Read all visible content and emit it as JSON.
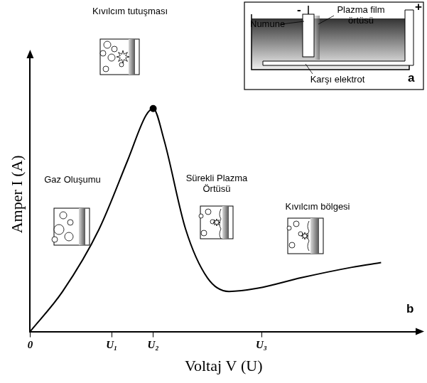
{
  "chart_data": {
    "type": "line",
    "x_label": "Voltaj V (U)",
    "y_label": "Amper I (A)",
    "x": [
      0,
      8.4,
      17.8,
      25.2,
      29.9,
      31.8,
      34.6,
      40.2,
      45.8,
      51.4,
      58.9,
      70.1,
      83.2,
      90.7
    ],
    "values": [
      0,
      14.6,
      37.2,
      62.3,
      78.6,
      81.2,
      69.8,
      37.2,
      19.6,
      14.6,
      15.8,
      19.6,
      23.4,
      25.1
    ],
    "color": "#000000",
    "xlim": [
      0,
      100
    ],
    "ylim": [
      0,
      100
    ],
    "xticks": [
      0,
      {
        "value": 21.1,
        "label": "U₁"
      },
      {
        "value": 31.8,
        "label": "U₂"
      },
      {
        "value": 59.8,
        "label": "U₃"
      }
    ],
    "yticks": [],
    "tick_labels": "x",
    "grid": false,
    "annotations": [
      "Gaz Oluşumu",
      "Kıvılcım tutuşması",
      "Sürekli Plazma Örtüsü",
      "Kıvılcım bölgesi"
    ],
    "panel_label": "b"
  },
  "inset": {
    "sample": "Numune",
    "film": "Plazma film örtüsü",
    "electrode": "Karşı elektrot",
    "minus": "-",
    "plus": "+",
    "panel_label": "a"
  }
}
